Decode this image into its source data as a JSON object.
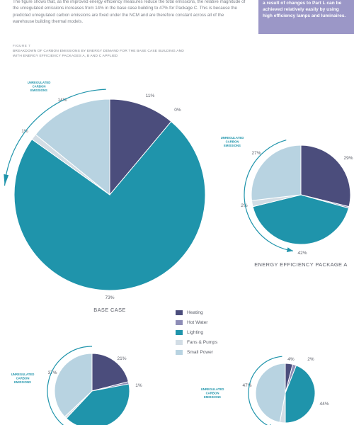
{
  "intro_text": "The figure shows that, as the improved energy efficiency measures reduce the total emissions, the relative magnitude of the unregulated emissions increases from 14% in the base case building to 47% for Package C. This is because the predicted unregulated carbon emissions are fixed under the NCM and are therefore constant across all of the warehouse building thermal models.",
  "callout_text": "a result of changes to Part L can be achieved relatively easily by using high efficiency lamps and luminaires.",
  "figure_label": "FIGURE 7",
  "figure_caption": "BREAKDOWN OF CARBON EMISSIONS BY ENERGY DEMAND FOR THE BASE CASE BUILDING AND WITH ENERGY EFFICIENCY PACKAGES A, B AND C APPLIED",
  "unregulated_label": [
    "UNREGULATED",
    "CARBON",
    "EMISSIONS"
  ],
  "colors": {
    "Heating": "#4b4d7c",
    "Hot Water": "#8d8cb6",
    "Lighting": "#1f94ab",
    "Fans & Pumps": "#d2dde5",
    "Small Power": "#b8d3e1",
    "arc": "#1f94ab"
  },
  "legend": [
    "Heating",
    "Hot Water",
    "Lighting",
    "Fans & Pumps",
    "Small Power"
  ],
  "chart_data": [
    {
      "type": "pie",
      "title": "BASE CASE",
      "categories": [
        "Heating",
        "Hot Water",
        "Lighting",
        "Fans & Pumps",
        "Small Power"
      ],
      "values": [
        11,
        0,
        73,
        1,
        14
      ],
      "labels": [
        "11%",
        "0%",
        "73%",
        "1%",
        "14%"
      ]
    },
    {
      "type": "pie",
      "title": "ENERGY EFFICIENCY PACKAGE A",
      "categories": [
        "Heating",
        "Hot Water",
        "Lighting",
        "Fans & Pumps",
        "Small Power"
      ],
      "values": [
        29,
        0.5,
        42,
        2,
        27
      ],
      "labels": [
        "29%",
        "",
        "42%",
        "2%",
        "27%"
      ]
    },
    {
      "type": "pie",
      "title": "",
      "categories": [
        "Heating",
        "Hot Water",
        "Lighting",
        "Fans & Pumps",
        "Small Power"
      ],
      "values": [
        21,
        1,
        40,
        1,
        37
      ],
      "labels": [
        "21%",
        "1%",
        "",
        "",
        "37%"
      ]
    },
    {
      "type": "pie",
      "title": "",
      "categories": [
        "Heating",
        "Hot Water",
        "Lighting",
        "Fans & Pumps",
        "Small Power"
      ],
      "values": [
        4,
        2,
        44,
        3,
        47
      ],
      "labels": [
        "4%",
        "2%",
        "44%",
        "",
        "47%"
      ]
    }
  ]
}
